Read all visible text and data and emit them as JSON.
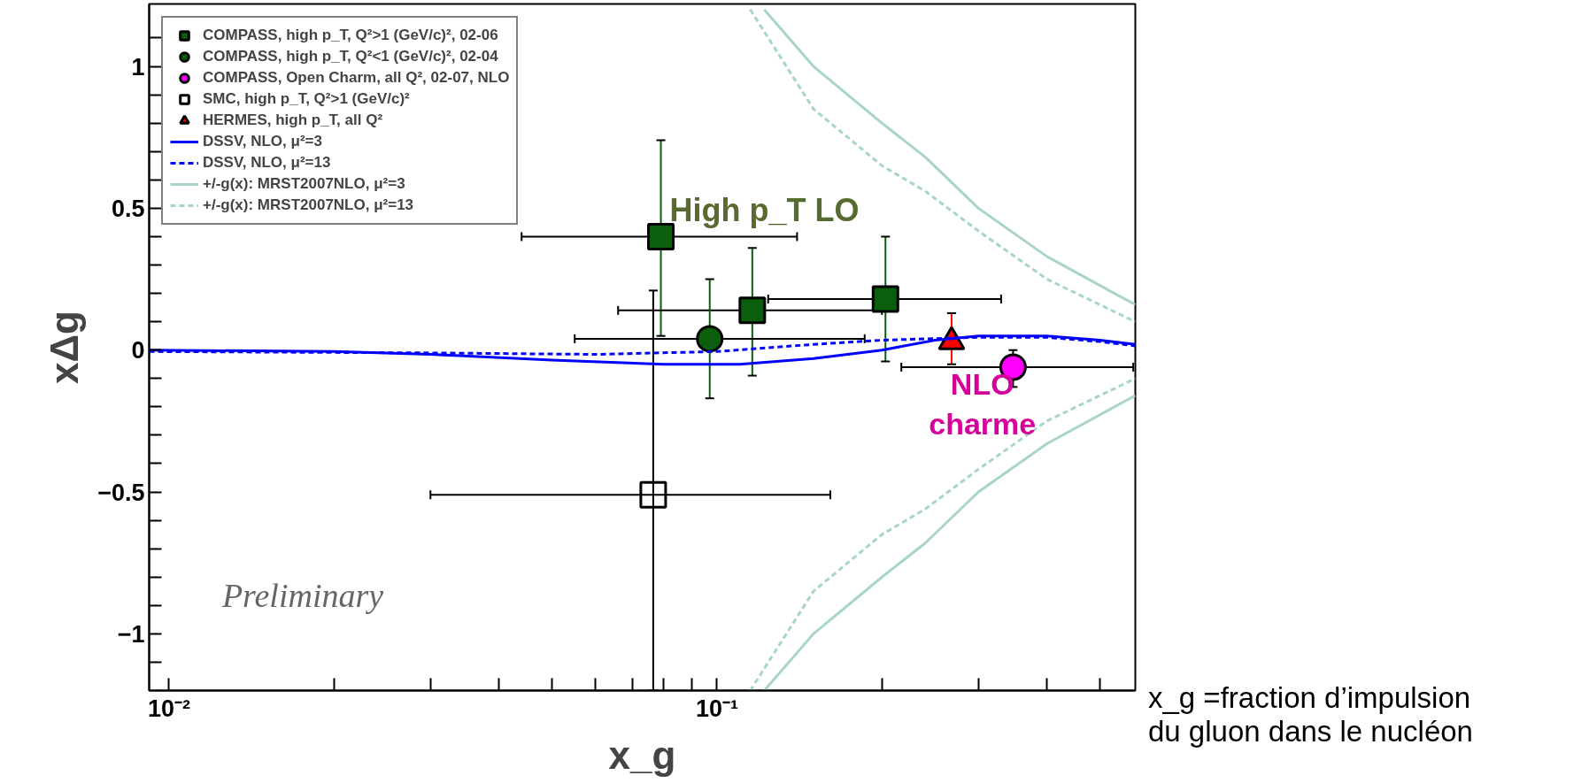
{
  "chart_data": {
    "type": "scatter",
    "xlabel": "x_g",
    "ylabel": "xΔg",
    "log": "x",
    "grid": false,
    "legend": "top left",
    "xlim": [
      0.0092,
      0.58
    ],
    "ylim": [
      -1.2,
      1.22
    ],
    "xticks": [
      {
        "value": 0.01,
        "label": "10⁻²"
      },
      {
        "value": 0.02,
        "label": null
      },
      {
        "value": 0.03,
        "label": null
      },
      {
        "value": 0.04,
        "label": null
      },
      {
        "value": 0.05,
        "label": null
      },
      {
        "value": 0.06,
        "label": null
      },
      {
        "value": 0.07,
        "label": null
      },
      {
        "value": 0.08,
        "label": null
      },
      {
        "value": 0.09,
        "label": null
      },
      {
        "value": 0.1,
        "label": "10⁻¹"
      },
      {
        "value": 0.2,
        "label": null
      },
      {
        "value": 0.3,
        "label": null
      },
      {
        "value": 0.4,
        "label": null
      },
      {
        "value": 0.5,
        "label": null
      }
    ],
    "yticks": [
      {
        "value": -1.1,
        "label": null
      },
      -1,
      {
        "value": -0.9,
        "label": null
      },
      {
        "value": -0.8,
        "label": null
      },
      {
        "value": -0.7,
        "label": null
      },
      {
        "value": -0.6,
        "label": null
      },
      -0.5,
      {
        "value": -0.4,
        "label": null
      },
      {
        "value": -0.3,
        "label": null
      },
      {
        "value": -0.2,
        "label": null
      },
      {
        "value": -0.1,
        "label": null
      },
      0,
      {
        "value": 0.1,
        "label": null
      },
      {
        "value": 0.2,
        "label": null
      },
      {
        "value": 0.3,
        "label": null
      },
      {
        "value": 0.4,
        "label": null
      },
      0.5,
      {
        "value": 0.6,
        "label": null
      },
      {
        "value": 0.7,
        "label": null
      },
      {
        "value": 0.8,
        "label": null
      },
      {
        "value": 0.9,
        "label": null
      },
      1,
      {
        "value": 1.1,
        "label": null
      }
    ],
    "series": [
      {
        "name": "COMPASS, high p_T, Q²>1 (GeV/c)², 02-06",
        "marker": "square",
        "color": "#0b5e0b",
        "x": [
          0.079,
          0.116,
          0.203
        ],
        "values": [
          0.4,
          0.14,
          0.18
        ],
        "errors": [
          [
            0.05,
            0.74
          ],
          [
            -0.09,
            0.36
          ],
          [
            -0.04,
            0.4
          ]
        ],
        "xerrors": [
          [
            0.044,
            0.14
          ],
          [
            0.066,
            0.2
          ],
          [
            0.124,
            0.33
          ]
        ]
      },
      {
        "name": "COMPASS, high p_T, Q²<1 (GeV/c)², 02-04",
        "marker": "circle",
        "color": "#0b5e0b",
        "x": [
          0.097
        ],
        "values": [
          0.04
        ],
        "errors": [
          [
            -0.17,
            0.25
          ]
        ],
        "xerrors": [
          [
            0.055,
            0.186
          ]
        ]
      },
      {
        "name": "COMPASS, Open Charm, all Q², 02-07, NLO",
        "marker": "circle",
        "color": "#ff00ff",
        "x": [
          0.347
        ],
        "values": [
          -0.06
        ],
        "errors": [
          [
            -0.13,
            0.0
          ]
        ],
        "xerrors": [
          [
            0.217,
            0.575
          ]
        ]
      },
      {
        "name": "SMC, high p_T, Q²>1 (GeV/c)²",
        "marker": "square_open",
        "color": "#000000",
        "x": [
          0.0765
        ],
        "values": [
          -0.51
        ],
        "errors": [
          [
            -1.2,
            0.21
          ]
        ],
        "xerrors": [
          [
            0.03,
            0.161
          ]
        ]
      },
      {
        "name": "HERMES, high p_T, all Q²",
        "marker": "triangle",
        "color": "#ff0000",
        "x": [
          0.268
        ],
        "values": [
          0.03
        ],
        "errors": [
          [
            -0.05,
            0.13
          ]
        ]
      },
      {
        "name": "DSSV, NLO, μ²=3",
        "type": "line",
        "line_style": "solid",
        "color": "#0000ff",
        "x": [
          0.0092,
          0.02,
          0.03,
          0.05,
          0.08,
          0.11,
          0.15,
          0.2,
          0.25,
          0.3,
          0.4,
          0.5,
          0.58
        ],
        "values": [
          0,
          -0.005,
          -0.015,
          -0.035,
          -0.05,
          -0.05,
          -0.03,
          0.0,
          0.035,
          0.05,
          0.05,
          0.035,
          0.02
        ]
      },
      {
        "name": "DSSV, NLO, μ²=13",
        "type": "line",
        "line_style": "dashed",
        "color": "#0000ff",
        "x": [
          0.0092,
          0.03,
          0.06,
          0.1,
          0.15,
          0.2,
          0.3,
          0.4,
          0.5,
          0.58
        ],
        "values": [
          -0.005,
          -0.01,
          -0.015,
          -0.005,
          0.02,
          0.035,
          0.045,
          0.045,
          0.03,
          0.015
        ]
      },
      {
        "name": "+/-g(x): MRST2007NLO, μ²=3",
        "type": "line",
        "line_style": "solid",
        "color": "#a8d5c8",
        "x": [
          0.122,
          0.15,
          0.2,
          0.24,
          0.3,
          0.4,
          0.58
        ],
        "values": [
          1.2,
          1.0,
          0.8,
          0.68,
          0.5,
          0.33,
          0.16
        ]
      },
      {
        "type": "line",
        "line_style": "solid",
        "color": "#a8d5c8",
        "x": [
          0.122,
          0.15,
          0.2,
          0.24,
          0.3,
          0.4,
          0.58
        ],
        "values": [
          -1.2,
          -1.0,
          -0.8,
          -0.68,
          -0.5,
          -0.33,
          -0.16
        ]
      },
      {
        "name": "+/-g(x): MRST2007NLO, μ²=13",
        "type": "line",
        "line_style": "dashed",
        "color": "#a8d5c8",
        "x": [
          0.115,
          0.15,
          0.2,
          0.24,
          0.3,
          0.4,
          0.58
        ],
        "values": [
          1.2,
          0.85,
          0.65,
          0.56,
          0.42,
          0.25,
          0.1
        ]
      },
      {
        "type": "line",
        "line_style": "dashed",
        "color": "#a8d5c8",
        "x": [
          0.115,
          0.15,
          0.2,
          0.24,
          0.3,
          0.4,
          0.58
        ],
        "values": [
          -1.2,
          -0.85,
          -0.65,
          -0.56,
          -0.42,
          -0.25,
          -0.1
        ]
      }
    ],
    "annotations": [
      "High p_T LO",
      "NLO\ncharme",
      "Preliminary",
      "x_g =fraction d’impulsion\ndu gluon dans le nucléon"
    ]
  }
}
